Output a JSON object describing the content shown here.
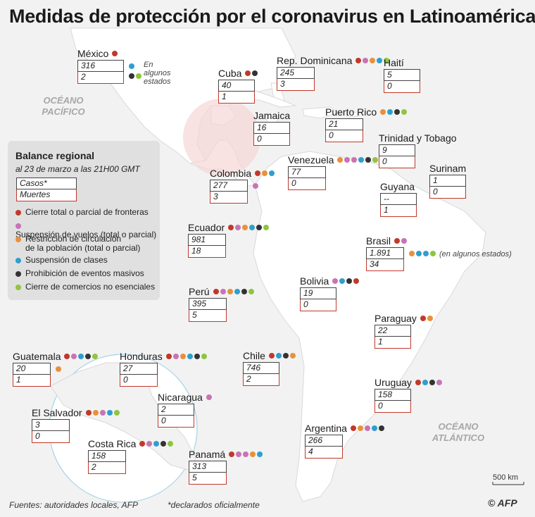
{
  "title": "Medidas de protección por el coronavirus en Latinoamérica",
  "oceans": {
    "pacific": "OCÉANO\nPACÍFICO",
    "atlantic": "OCÉANO\nATLÁNTICO"
  },
  "colors": {
    "borders": "#c0392b",
    "flights": "#c774b5",
    "circulation": "#e8913a",
    "classes": "#2e9fcf",
    "events": "#333333",
    "shops": "#8dc63f"
  },
  "legend": {
    "title": "Balance regional",
    "subtitle": "al 23 de marzo a las 21H00 GMT",
    "cases_label": "Casos*",
    "deaths_label": "Muertes",
    "items": [
      {
        "key": "borders",
        "label": "Cierre total o parcial de fronteras"
      },
      {
        "key": "flights",
        "label": "Suspensión de vuelos (total o parcial)"
      },
      {
        "key": "circulation",
        "label": "Restricción de circulación\nde la población (total o parcial)"
      },
      {
        "key": "classes",
        "label": "Suspensión de clases"
      },
      {
        "key": "events",
        "label": "Prohibición de eventos masivos"
      },
      {
        "key": "shops",
        "label": "Cierre de comercios no esenciales"
      }
    ]
  },
  "countries": [
    {
      "name": "México",
      "cases": "316",
      "deaths": "2",
      "measures": [
        "borders"
      ],
      "measures2": [
        "classes"
      ],
      "measures3": [
        "events",
        "shops"
      ],
      "note": "En algunos\nestados"
    },
    {
      "name": "Cuba",
      "cases": "40",
      "deaths": "1",
      "measures": [
        "borders",
        "events"
      ]
    },
    {
      "name": "Rep. Dominicana",
      "cases": "245",
      "deaths": "3",
      "measures": [
        "borders",
        "flights",
        "circulation",
        "classes",
        "shops"
      ]
    },
    {
      "name": "Haití",
      "cases": "5",
      "deaths": "0",
      "measures": []
    },
    {
      "name": "Jamaica",
      "cases": "16",
      "deaths": "0",
      "measures": []
    },
    {
      "name": "Puerto Rico",
      "cases": "21",
      "deaths": "0",
      "measures": [
        "circulation",
        "classes",
        "events",
        "shops"
      ]
    },
    {
      "name": "Trinidad y Tobago",
      "cases": "9",
      "deaths": "0",
      "measures": []
    },
    {
      "name": "Colombia",
      "cases": "277",
      "deaths": "3",
      "measures": [
        "borders",
        "circulation",
        "classes"
      ],
      "measures2": [
        "flights"
      ]
    },
    {
      "name": "Venezuela",
      "cases": "77",
      "deaths": "0",
      "measures": [
        "circulation",
        "flights",
        "flights",
        "classes",
        "events",
        "shops"
      ]
    },
    {
      "name": "Surinam",
      "cases": "1",
      "deaths": "0",
      "measures": []
    },
    {
      "name": "Guyana",
      "cases": "--",
      "deaths": "1",
      "measures": []
    },
    {
      "name": "Ecuador",
      "cases": "981",
      "deaths": "18",
      "measures": [
        "borders",
        "flights",
        "circulation",
        "classes",
        "events",
        "shops"
      ]
    },
    {
      "name": "Brasil",
      "cases": "1.891",
      "deaths": "34",
      "measures": [
        "borders",
        "flights"
      ],
      "measures2": [
        "circulation",
        "classes",
        "classes",
        "shops"
      ],
      "note": "(en algunos estados)"
    },
    {
      "name": "Perú",
      "cases": "395",
      "deaths": "5",
      "measures": [
        "borders",
        "flights",
        "circulation",
        "classes",
        "events",
        "shops"
      ]
    },
    {
      "name": "Bolivia",
      "cases": "19",
      "deaths": "0",
      "measures": [
        "flights",
        "classes",
        "events",
        "borders"
      ]
    },
    {
      "name": "Paraguay",
      "cases": "22",
      "deaths": "1",
      "measures": [
        "borders",
        "circulation"
      ]
    },
    {
      "name": "Guatemala",
      "cases": "20",
      "deaths": "1",
      "measures": [
        "borders",
        "flights",
        "classes",
        "events",
        "shops"
      ],
      "measures2": [
        "circulation"
      ]
    },
    {
      "name": "Honduras",
      "cases": "27",
      "deaths": "0",
      "measures": [
        "borders",
        "flights",
        "circulation",
        "classes",
        "events",
        "shops"
      ]
    },
    {
      "name": "Chile",
      "cases": "746",
      "deaths": "2",
      "measures": [
        "borders",
        "classes",
        "events",
        "circulation"
      ]
    },
    {
      "name": "Nicaragua",
      "cases": "2",
      "deaths": "0",
      "measures": [
        "flights"
      ]
    },
    {
      "name": "El Salvador",
      "cases": "3",
      "deaths": "0",
      "measures": [
        "borders",
        "circulation",
        "flights",
        "classes",
        "shops"
      ]
    },
    {
      "name": "Uruguay",
      "cases": "158",
      "deaths": "0",
      "measures": [
        "borders",
        "classes",
        "events",
        "flights"
      ]
    },
    {
      "name": "Costa Rica",
      "cases": "158",
      "deaths": "2",
      "measures": [
        "borders",
        "flights",
        "classes",
        "events",
        "shops"
      ]
    },
    {
      "name": "Panamá",
      "cases": "313",
      "deaths": "5",
      "measures": [
        "borders",
        "flights",
        "flights",
        "circulation",
        "classes"
      ]
    },
    {
      "name": "Argentina",
      "cases": "266",
      "deaths": "4",
      "measures": [
        "borders",
        "circulation",
        "flights",
        "classes",
        "events"
      ]
    }
  ],
  "scale_label": "500 km",
  "footer": {
    "sources": "Fuentes: autoridades locales, AFP",
    "declared": "*declarados oficialmente"
  },
  "credit": "© AFP"
}
